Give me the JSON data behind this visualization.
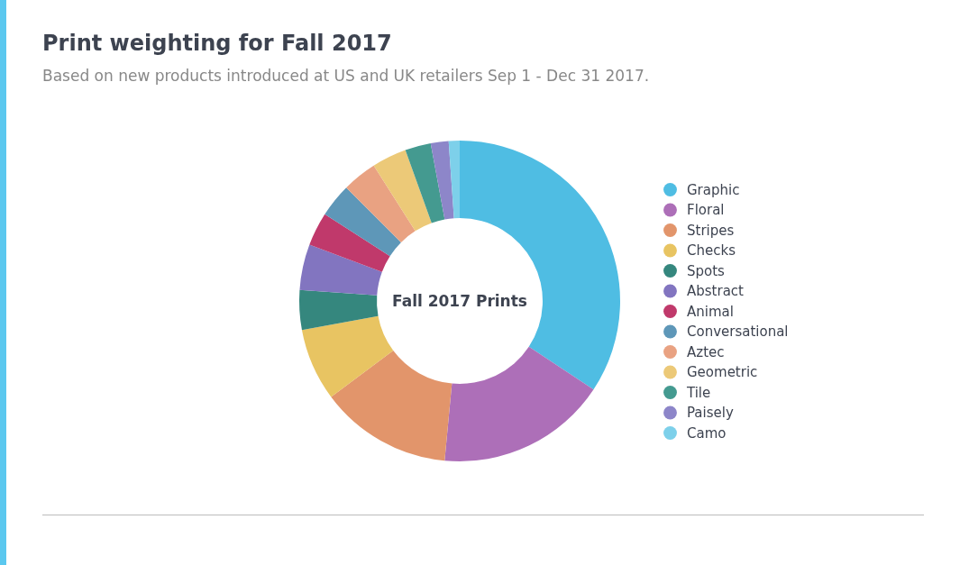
{
  "chart_data": {
    "type": "donut",
    "title": "Print weighting for Fall 2017",
    "subtitle": "Based on new products introduced at US and UK retailers Sep 1 - Dec 31 2017.",
    "annotations": [
      "Fall 2017 Prints"
    ],
    "categories": [
      "Graphic",
      "Floral",
      "Stripes",
      "Checks",
      "Spots",
      "Abstract",
      "Animal",
      "Conversational",
      "Aztec",
      "Geometric",
      "Tile",
      "Paisely",
      "Camo"
    ],
    "values": [
      34.3,
      17.2,
      13.3,
      7.3,
      4,
      4.6,
      3.4,
      3.4,
      3.5,
      3.5,
      2.6,
      1.8,
      1.1
    ],
    "colors": [
      "#4fbde3",
      "#ad6fb8",
      "#e2956b",
      "#e8c462",
      "#35877e",
      "#8275c0",
      "#c0396b",
      "#5e97b8",
      "#e9a282",
      "#ecc978",
      "#449a90",
      "#8d86c9",
      "#7dd0ea"
    ],
    "legend": "right"
  }
}
